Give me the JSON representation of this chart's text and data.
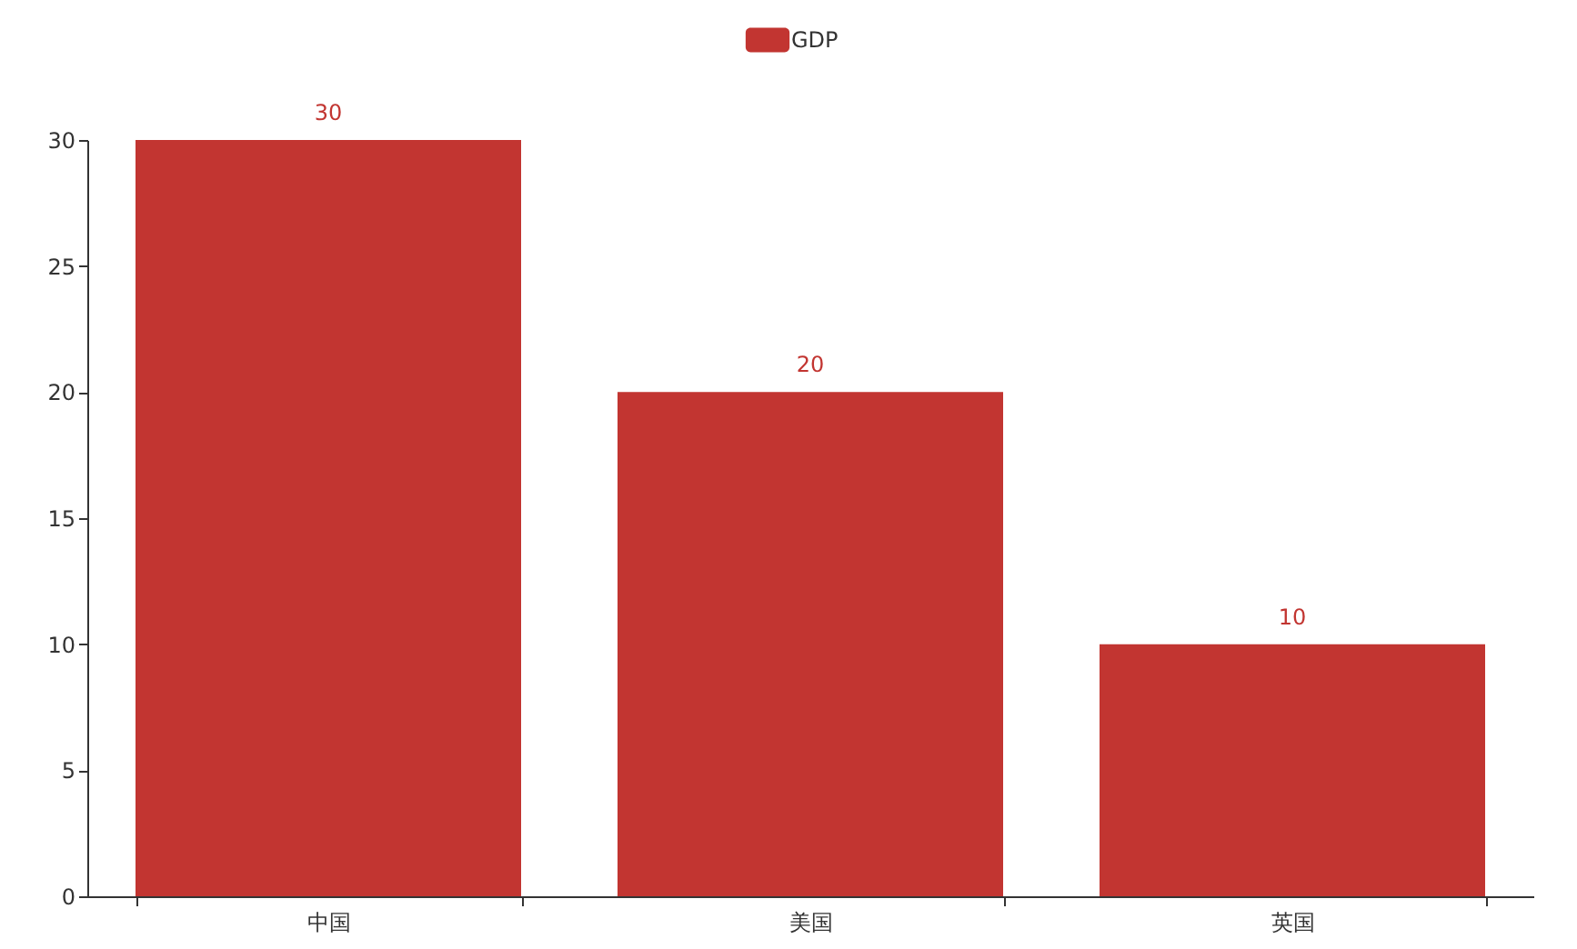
{
  "chart_data": {
    "type": "bar",
    "categories": [
      "中国",
      "美国",
      "英国"
    ],
    "series": [
      {
        "name": "GDP",
        "color": "#c23531",
        "values": [
          30,
          20,
          10
        ]
      }
    ],
    "ylim": [
      0,
      30
    ],
    "yticks": [
      0,
      5,
      10,
      15,
      20,
      25,
      30
    ],
    "grid": false,
    "legend": "top",
    "data_labels": true
  }
}
